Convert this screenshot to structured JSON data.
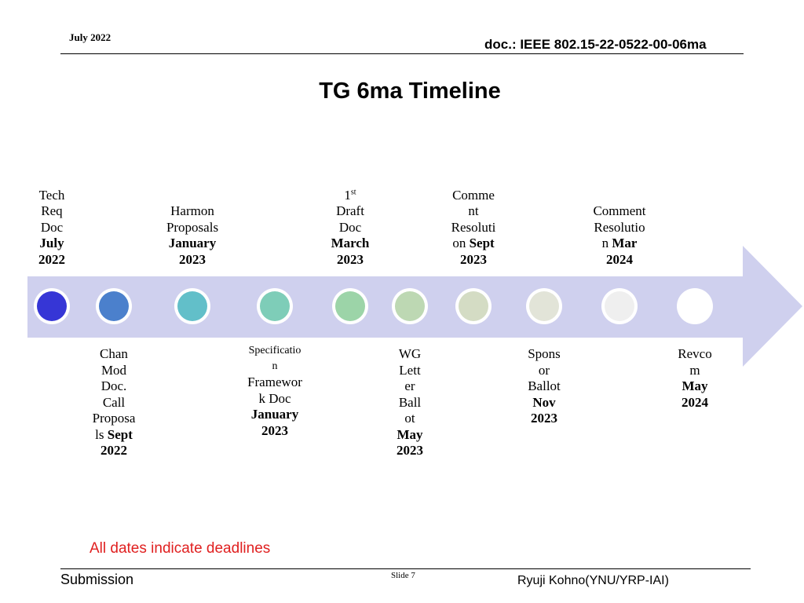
{
  "header": {
    "date": "July 2022",
    "doc_id": "doc.: IEEE 802.15-22-0522-00-06ma"
  },
  "title": "TG 6ma Timeline",
  "milestones_top": [
    {
      "lines": [
        {
          "t": "Tech"
        },
        {
          "t": "Req"
        },
        {
          "t": "Doc"
        },
        {
          "t": "July",
          "b": true
        },
        {
          "t": "2022",
          "b": true
        }
      ]
    },
    {
      "lines": [
        {
          "t": "Harmon"
        },
        {
          "t": "Proposals"
        },
        {
          "t": "January",
          "b": true
        },
        {
          "t": "2023",
          "b": true
        }
      ]
    },
    {
      "lines": [
        {
          "t": "1",
          "sup": "st"
        },
        {
          "t": "Draft"
        },
        {
          "t": "Doc"
        },
        {
          "t": "March",
          "b": true
        },
        {
          "t": "2023",
          "b": true
        }
      ]
    },
    {
      "lines": [
        {
          "t": "Comme"
        },
        {
          "t": "nt"
        },
        {
          "t": "Resoluti"
        },
        {
          "t": "on ",
          "bt": "Sept"
        },
        {
          "t": "2023",
          "b": true
        }
      ]
    },
    {
      "lines": [
        {
          "t": "Comment"
        },
        {
          "t": "Resolutio"
        },
        {
          "t": "n ",
          "bt": "Mar"
        },
        {
          "t": "2024",
          "b": true
        }
      ]
    }
  ],
  "milestones_bottom": [
    {
      "lines": [
        {
          "t": "Chan"
        },
        {
          "t": "Mod"
        },
        {
          "t": "Doc."
        },
        {
          "t": "Call"
        },
        {
          "t": "Proposa"
        },
        {
          "t": "ls ",
          "bt": "Sept"
        },
        {
          "t": "2022",
          "b": true
        }
      ]
    },
    {
      "lines": [
        {
          "t": "Specificatio",
          "s": true
        },
        {
          "t": "n",
          "s": true
        },
        {
          "t": "Framewor"
        },
        {
          "t": "k Doc"
        },
        {
          "t": "January",
          "b": true
        },
        {
          "t": "2023",
          "b": true
        }
      ]
    },
    {
      "lines": [
        {
          "t": "WG"
        },
        {
          "t": "Lett"
        },
        {
          "t": "er"
        },
        {
          "t": "Ball"
        },
        {
          "t": "ot"
        },
        {
          "t": "May",
          "b": true
        },
        {
          "t": "2023",
          "b": true
        }
      ]
    },
    {
      "lines": [
        {
          "t": "Spons"
        },
        {
          "t": "or"
        },
        {
          "t": "Ballot"
        },
        {
          "t": "Nov",
          "b": true
        },
        {
          "t": "2023",
          "b": true
        }
      ]
    },
    {
      "lines": [
        {
          "t": "Revco"
        },
        {
          "t": "m"
        },
        {
          "t": "May",
          "b": true
        },
        {
          "t": "2024",
          "b": true
        }
      ]
    }
  ],
  "colors": {
    "arrow": "#cfd0ee",
    "dots": [
      "#3636d6",
      "#4b80cc",
      "#62bfc9",
      "#7ecdb8",
      "#9cd4a8",
      "#bdd8b3",
      "#d4dcc4",
      "#e2e4d8",
      "#efefef",
      "#ffffff"
    ]
  },
  "note": "All dates indicate deadlines",
  "footer": {
    "left": "Submission",
    "slide": "Slide 7",
    "right": "Ryuji Kohno(YNU/YRP-IAI)"
  }
}
